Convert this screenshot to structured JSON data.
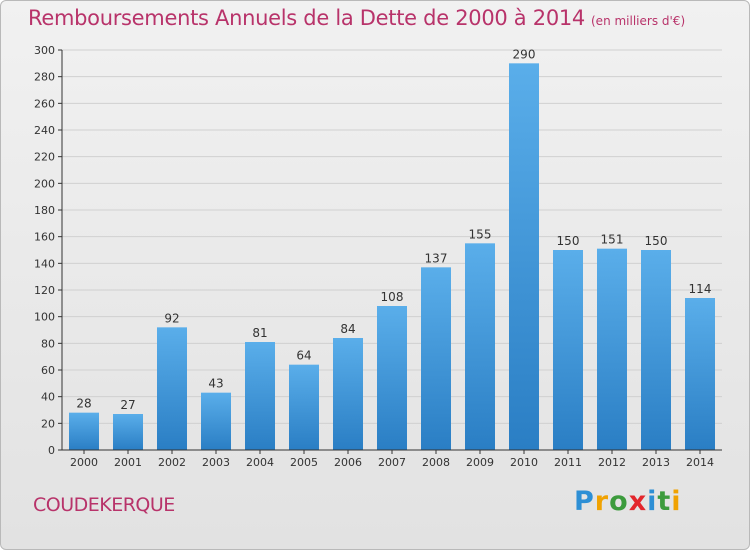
{
  "title": "Remboursements Annuels de la Dette de 2000 à 2014",
  "subtitle": "(en milliers d'€)",
  "commune": "COUDEKERQUE",
  "logo": {
    "letters": [
      "P",
      "r",
      "o",
      "x",
      "i",
      "t",
      "i"
    ],
    "colors": [
      "#2d8fd5",
      "#f0a202",
      "#3c9b3c",
      "#e3262c",
      "#2d8fd5",
      "#3c9b3c",
      "#f0a202"
    ]
  },
  "colors": {
    "accent": "#b8336a",
    "bar_top": "#5aaeea",
    "bar_bottom": "#2a7ec4",
    "axis": "#333333",
    "grid": "#d0d0d0"
  },
  "chart_data": {
    "type": "bar",
    "categories": [
      "2000",
      "2001",
      "2002",
      "2003",
      "2004",
      "2005",
      "2006",
      "2007",
      "2008",
      "2009",
      "2010",
      "2011",
      "2012",
      "2013",
      "2014"
    ],
    "values": [
      28,
      27,
      92,
      43,
      81,
      64,
      84,
      108,
      137,
      155,
      290,
      150,
      151,
      150,
      114
    ],
    "ylim": [
      0,
      300
    ],
    "yticks": [
      0,
      20,
      40,
      60,
      80,
      100,
      120,
      140,
      160,
      180,
      200,
      220,
      240,
      260,
      280,
      300
    ],
    "grid": true,
    "data_labels": true
  }
}
